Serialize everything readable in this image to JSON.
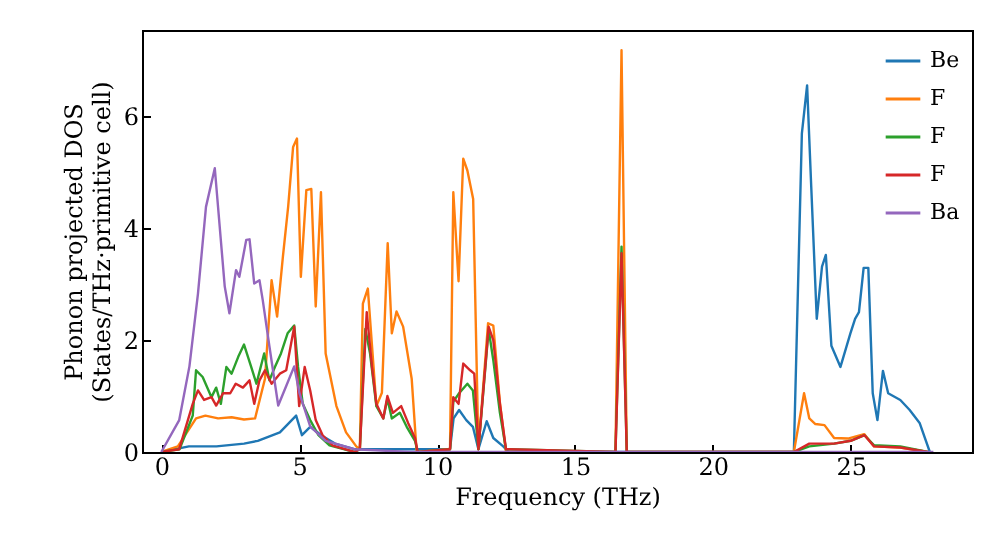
{
  "chart_data": {
    "type": "line",
    "xlabel": "Frequency (THz)",
    "ylabel": "Phonon projected DOS\n(States/THz·primitive cell)",
    "xlim": [
      -0.7,
      29.4
    ],
    "ylim": [
      0,
      7.54
    ],
    "xticks": [
      0,
      5,
      10,
      15,
      20,
      25
    ],
    "yticks": [
      0,
      2,
      4,
      6
    ],
    "legend": "top right",
    "grid": false,
    "series": [
      {
        "name": "Be",
        "color": "#1f77b4",
        "x": [
          0,
          1,
          2,
          3,
          3.5,
          4.3,
          4.89,
          5.1,
          5.4,
          5.8,
          6.3,
          7,
          10.47,
          10.6,
          10.8,
          11.06,
          11.3,
          11.5,
          11.8,
          12.04,
          12.4,
          12.6,
          22.94,
          23.23,
          23.42,
          23.57,
          23.77,
          23.96,
          24.1,
          24.3,
          24.63,
          24.99,
          25.16,
          25.3,
          25.47,
          25.64,
          25.8,
          25.97,
          26.17,
          26.36,
          26.8,
          27.14,
          27.5,
          27.87
        ],
        "values": [
          0,
          0.1,
          0.1,
          0.15,
          0.2,
          0.35,
          0.65,
          0.3,
          0.45,
          0.3,
          0.15,
          0.05,
          0.05,
          0.6,
          0.75,
          0.57,
          0.45,
          0.05,
          0.55,
          0.25,
          0.1,
          0,
          0,
          5.69,
          6.55,
          4.74,
          2.38,
          3.31,
          3.52,
          1.9,
          1.52,
          2.12,
          2.38,
          2.5,
          3.29,
          3.29,
          1.05,
          0.57,
          1.45,
          1.05,
          0.93,
          0.75,
          0.52,
          0
        ]
      },
      {
        "name": "F",
        "color": "#ff7f0e",
        "x": [
          0,
          0.6,
          1.26,
          1.6,
          2.06,
          2.55,
          3.0,
          3.4,
          3.76,
          4.0,
          4.2,
          4.41,
          4.6,
          4.78,
          4.92,
          5.06,
          5.26,
          5.44,
          5.6,
          5.79,
          5.96,
          6.35,
          6.7,
          7.07,
          7.2,
          7.31,
          7.49,
          7.8,
          8.0,
          8.21,
          8.36,
          8.53,
          8.77,
          9.08,
          9.26,
          10.47,
          10.59,
          10.78,
          10.95,
          11.1,
          11.31,
          11.5,
          11.85,
          12.04,
          12.28,
          12.5,
          16.47,
          16.69,
          16.88,
          22.94,
          23.31,
          23.5,
          23.72,
          24.05,
          24.4,
          24.9,
          25.49,
          25.85,
          26.8,
          27.8
        ],
        "values": [
          0,
          0.1,
          0.6,
          0.65,
          0.6,
          0.62,
          0.58,
          0.6,
          1.31,
          3.07,
          2.42,
          3.49,
          4.38,
          5.45,
          5.6,
          3.13,
          4.68,
          4.7,
          2.6,
          4.64,
          1.76,
          0.82,
          0.35,
          0.1,
          0.05,
          2.65,
          2.92,
          0.82,
          1.06,
          3.73,
          2.12,
          2.51,
          2.24,
          1.31,
          0,
          0.05,
          4.64,
          3.05,
          5.24,
          5.03,
          4.52,
          0.05,
          2.3,
          2.26,
          0.88,
          0,
          0,
          7.18,
          0,
          0,
          1.05,
          0.6,
          0.5,
          0.48,
          0.25,
          0.24,
          0.32,
          0.1,
          0.08,
          0
        ]
      },
      {
        "name": "F",
        "color": "#2ca02c",
        "x": [
          0,
          0.66,
          1.14,
          1.26,
          1.5,
          1.82,
          1.99,
          2.16,
          2.36,
          2.55,
          2.79,
          3.0,
          3.26,
          3.45,
          3.73,
          3.92,
          4.12,
          4.34,
          4.58,
          4.82,
          4.96,
          5.13,
          5.4,
          5.7,
          6.1,
          7.0,
          7.2,
          7.4,
          7.57,
          7.8,
          8.05,
          8.2,
          8.36,
          8.65,
          8.9,
          9.2,
          9.3,
          10.47,
          10.59,
          10.8,
          11.1,
          11.3,
          11.5,
          11.87,
          12.04,
          12.28,
          12.5,
          16.47,
          16.69,
          16.88,
          22.94,
          23.5,
          24.4,
          25.0,
          25.5,
          25.85,
          26.8,
          27.8
        ],
        "values": [
          0,
          0.05,
          0.65,
          1.46,
          1.34,
          0.98,
          1.15,
          0.86,
          1.52,
          1.4,
          1.7,
          1.92,
          1.52,
          1.22,
          1.76,
          1.28,
          1.52,
          1.76,
          2.12,
          2.26,
          1.52,
          0.86,
          0.57,
          0.3,
          0.12,
          0,
          0.05,
          2.2,
          1.76,
          0.82,
          0.6,
          0.95,
          0.6,
          0.7,
          0.45,
          0.2,
          0,
          0.05,
          0.9,
          1.05,
          1.22,
          1.1,
          0.05,
          2.19,
          1.64,
          0.7,
          0.05,
          0,
          3.67,
          0,
          0,
          0.1,
          0.15,
          0.2,
          0.3,
          0.12,
          0.1,
          0
        ]
      },
      {
        "name": "F",
        "color": "#d62728",
        "x": [
          0,
          0.65,
          1.14,
          1.33,
          1.55,
          1.82,
          1.99,
          2.24,
          2.5,
          2.7,
          2.96,
          3.2,
          3.37,
          3.56,
          3.76,
          4.0,
          4.3,
          4.53,
          4.82,
          5.0,
          5.2,
          5.4,
          5.6,
          5.85,
          6.2,
          7.0,
          7.2,
          7.45,
          7.64,
          7.8,
          8.05,
          8.2,
          8.4,
          8.7,
          8.95,
          9.2,
          9.3,
          10.47,
          10.59,
          10.78,
          10.95,
          11.2,
          11.35,
          11.5,
          11.87,
          12.04,
          12.28,
          12.5,
          16.47,
          16.69,
          16.88,
          22.94,
          23.5,
          24.4,
          25.0,
          25.5,
          25.85,
          26.8,
          27.8
        ],
        "values": [
          0,
          0.05,
          0.86,
          1.1,
          0.93,
          0.98,
          0.83,
          1.05,
          1.05,
          1.22,
          1.15,
          1.28,
          0.86,
          1.28,
          1.46,
          1.22,
          1.4,
          1.46,
          2.24,
          0.82,
          1.52,
          1.1,
          0.57,
          0.3,
          0.12,
          0,
          0.05,
          2.5,
          1.52,
          0.86,
          0.6,
          1.0,
          0.7,
          0.82,
          0.52,
          0.25,
          0,
          0.05,
          0.98,
          0.86,
          1.58,
          1.46,
          1.4,
          0.05,
          2.24,
          2.0,
          0.86,
          0.05,
          0,
          3.55,
          0,
          0,
          0.15,
          0.15,
          0.2,
          0.3,
          0.1,
          0.08,
          0
        ]
      },
      {
        "name": "Ba",
        "color": "#9467bd",
        "x": [
          0,
          0.65,
          1.02,
          1.33,
          1.62,
          1.94,
          2.3,
          2.47,
          2.71,
          2.83,
          3.08,
          3.2,
          3.37,
          3.56,
          3.68,
          3.92,
          4.24,
          4.53,
          4.82,
          5.01,
          5.4,
          5.96,
          7.0,
          9.0,
          28.0
        ],
        "values": [
          0,
          0.57,
          1.53,
          2.83,
          4.38,
          5.07,
          2.96,
          2.48,
          3.25,
          3.13,
          3.79,
          3.8,
          3.01,
          3.07,
          2.71,
          1.89,
          0.83,
          1.18,
          1.53,
          1.05,
          0.46,
          0.2,
          0.05,
          0,
          0
        ]
      }
    ]
  }
}
